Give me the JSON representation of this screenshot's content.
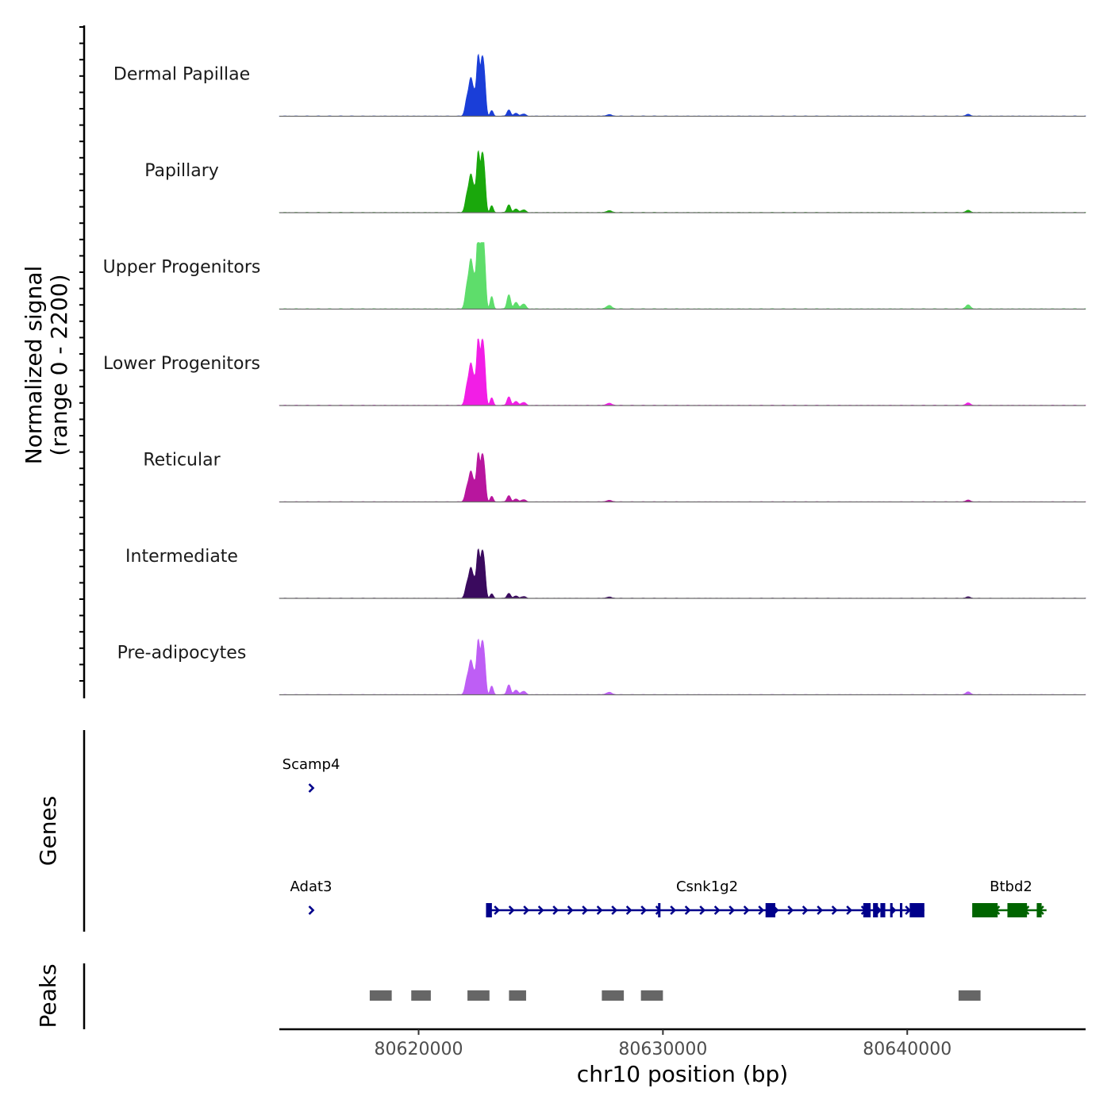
{
  "chart_data": {
    "type": "area",
    "title": "",
    "xlabel": "chr10 position (bp)",
    "ylabel": "Normalized signal",
    "ylabel_range": "(range 0 - 2200)",
    "ylim": [
      0,
      2200
    ],
    "xlim": [
      80614300,
      80647300
    ],
    "x_ticks": [
      80620000,
      80630000,
      80640000
    ],
    "x_tick_labels": [
      "80620000",
      "80630000",
      "80640000"
    ],
    "tracks": [
      {
        "name": "Dermal Papillae",
        "color": "#1A3ED8",
        "scale": 1.0,
        "minor": 0.08
      },
      {
        "name": "Papillary",
        "color": "#1AA80C",
        "scale": 1.0,
        "minor": 0.1
      },
      {
        "name": "Upper Progenitors",
        "color": "#5EDD6B",
        "scale": 1.3,
        "minor": 0.14
      },
      {
        "name": "Lower Progenitors",
        "color": "#F21EE6",
        "scale": 1.1,
        "minor": 0.1
      },
      {
        "name": "Reticular",
        "color": "#B8169E",
        "scale": 0.8,
        "minor": 0.1
      },
      {
        "name": "Intermediate",
        "color": "#3A0A5E",
        "scale": 0.8,
        "minor": 0.08
      },
      {
        "name": "Pre-adipocytes",
        "color": "#BE5EF5",
        "scale": 0.9,
        "minor": 0.14
      }
    ],
    "signal_peaks": [
      {
        "pos": 80622000,
        "height": 600,
        "width": 80
      },
      {
        "pos": 80622150,
        "height": 1100,
        "width": 70
      },
      {
        "pos": 80622300,
        "height": 700,
        "width": 70
      },
      {
        "pos": 80622450,
        "height": 1900,
        "width": 60
      },
      {
        "pos": 80622600,
        "height": 1600,
        "width": 60
      },
      {
        "pos": 80622700,
        "height": 1100,
        "width": 60
      },
      {
        "pos": 80623000,
        "height": 220,
        "width": 60
      },
      {
        "pos": 80623700,
        "height": 260,
        "width": 70
      },
      {
        "pos": 80624000,
        "height": 120,
        "width": 80
      },
      {
        "pos": 80624300,
        "height": 90,
        "width": 90
      },
      {
        "pos": 80627800,
        "height": 60,
        "width": 120
      },
      {
        "pos": 80642500,
        "height": 70,
        "width": 100
      }
    ],
    "genes_label": "Genes",
    "genes": [
      {
        "name": "Scamp4",
        "start": 80615500,
        "end": 80615700,
        "strand": "+",
        "row": 0,
        "color": "#00008B"
      },
      {
        "name": "Adat3",
        "start": 80615500,
        "end": 80615700,
        "strand": "+",
        "row": 1,
        "color": "#00008B"
      },
      {
        "name": "Csnk1g2",
        "start": 80622800,
        "end": 80640700,
        "strand": "+",
        "row": 1,
        "color": "#00008B",
        "exons": [
          [
            80622800,
            80623000
          ],
          [
            80629800,
            80629900
          ],
          [
            80634200,
            80634600
          ],
          [
            80638200,
            80638500
          ],
          [
            80638600,
            80638800
          ],
          [
            80638900,
            80639100
          ],
          [
            80639300,
            80639400
          ],
          [
            80639700,
            80639800
          ],
          [
            80640100,
            80640700
          ]
        ]
      },
      {
        "name": "Btbd2",
        "start": 80642700,
        "end": 80645700,
        "strand": "-",
        "row": 1,
        "color": "#006400",
        "exons": [
          [
            80642700,
            80643700
          ],
          [
            80644100,
            80644900
          ],
          [
            80645300,
            80645500
          ]
        ]
      }
    ],
    "peaks_label": "Peaks",
    "peaks": [
      [
        80618000,
        80618900
      ],
      [
        80619700,
        80620500
      ],
      [
        80622000,
        80622900
      ],
      [
        80623700,
        80624400
      ],
      [
        80627500,
        80628400
      ],
      [
        80629100,
        80630000
      ],
      [
        80642100,
        80643000
      ]
    ]
  }
}
